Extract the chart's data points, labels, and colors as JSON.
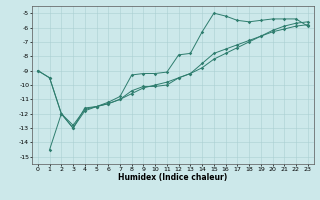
{
  "xlabel": "Humidex (Indice chaleur)",
  "background_color": "#cce8ea",
  "grid_color": "#aacfd2",
  "line_color": "#2e7d6e",
  "xlim": [
    -0.5,
    23.5
  ],
  "ylim": [
    -15.5,
    -4.5
  ],
  "yticks": [
    -5,
    -6,
    -7,
    -8,
    -9,
    -10,
    -11,
    -12,
    -13,
    -14,
    -15
  ],
  "xticks": [
    0,
    1,
    2,
    3,
    4,
    5,
    6,
    7,
    8,
    9,
    10,
    11,
    12,
    13,
    14,
    15,
    16,
    17,
    18,
    19,
    20,
    21,
    22,
    23
  ],
  "line1_x": [
    0,
    1,
    2,
    3,
    4,
    5,
    6,
    7,
    8,
    9,
    10,
    11,
    12,
    13,
    14,
    15,
    16,
    17,
    18,
    19,
    20,
    21,
    22,
    23
  ],
  "line1_y": [
    -9.0,
    -9.5,
    -12.0,
    -13.0,
    -11.6,
    -11.5,
    -11.2,
    -10.8,
    -9.3,
    -9.2,
    -9.2,
    -9.1,
    -7.9,
    -7.8,
    -6.3,
    -5.0,
    -5.2,
    -5.5,
    -5.6,
    -5.5,
    -5.4,
    -5.4,
    -5.4,
    -5.9
  ],
  "line2_x": [
    0,
    1,
    2,
    3,
    4,
    5,
    6,
    7,
    8,
    9,
    10,
    11,
    12,
    13,
    14,
    15,
    16,
    17,
    18,
    19,
    20,
    21,
    22,
    23
  ],
  "line2_y": [
    -9.0,
    -9.5,
    -12.0,
    -12.8,
    -11.7,
    -11.5,
    -11.3,
    -11.0,
    -10.4,
    -10.1,
    -10.1,
    -10.0,
    -9.5,
    -9.2,
    -8.5,
    -7.8,
    -7.5,
    -7.2,
    -6.9,
    -6.6,
    -6.3,
    -6.1,
    -5.9,
    -5.8
  ],
  "line3_x": [
    1,
    2,
    3,
    4,
    5,
    6,
    7,
    8,
    9,
    10,
    11,
    12,
    13,
    14,
    15,
    16,
    17,
    18,
    19,
    20,
    21,
    22,
    23
  ],
  "line3_y": [
    -14.5,
    -12.0,
    -13.0,
    -11.8,
    -11.5,
    -11.3,
    -11.0,
    -10.6,
    -10.2,
    -10.0,
    -9.8,
    -9.5,
    -9.2,
    -8.8,
    -8.2,
    -7.8,
    -7.4,
    -7.0,
    -6.6,
    -6.2,
    -5.9,
    -5.7,
    -5.6
  ]
}
